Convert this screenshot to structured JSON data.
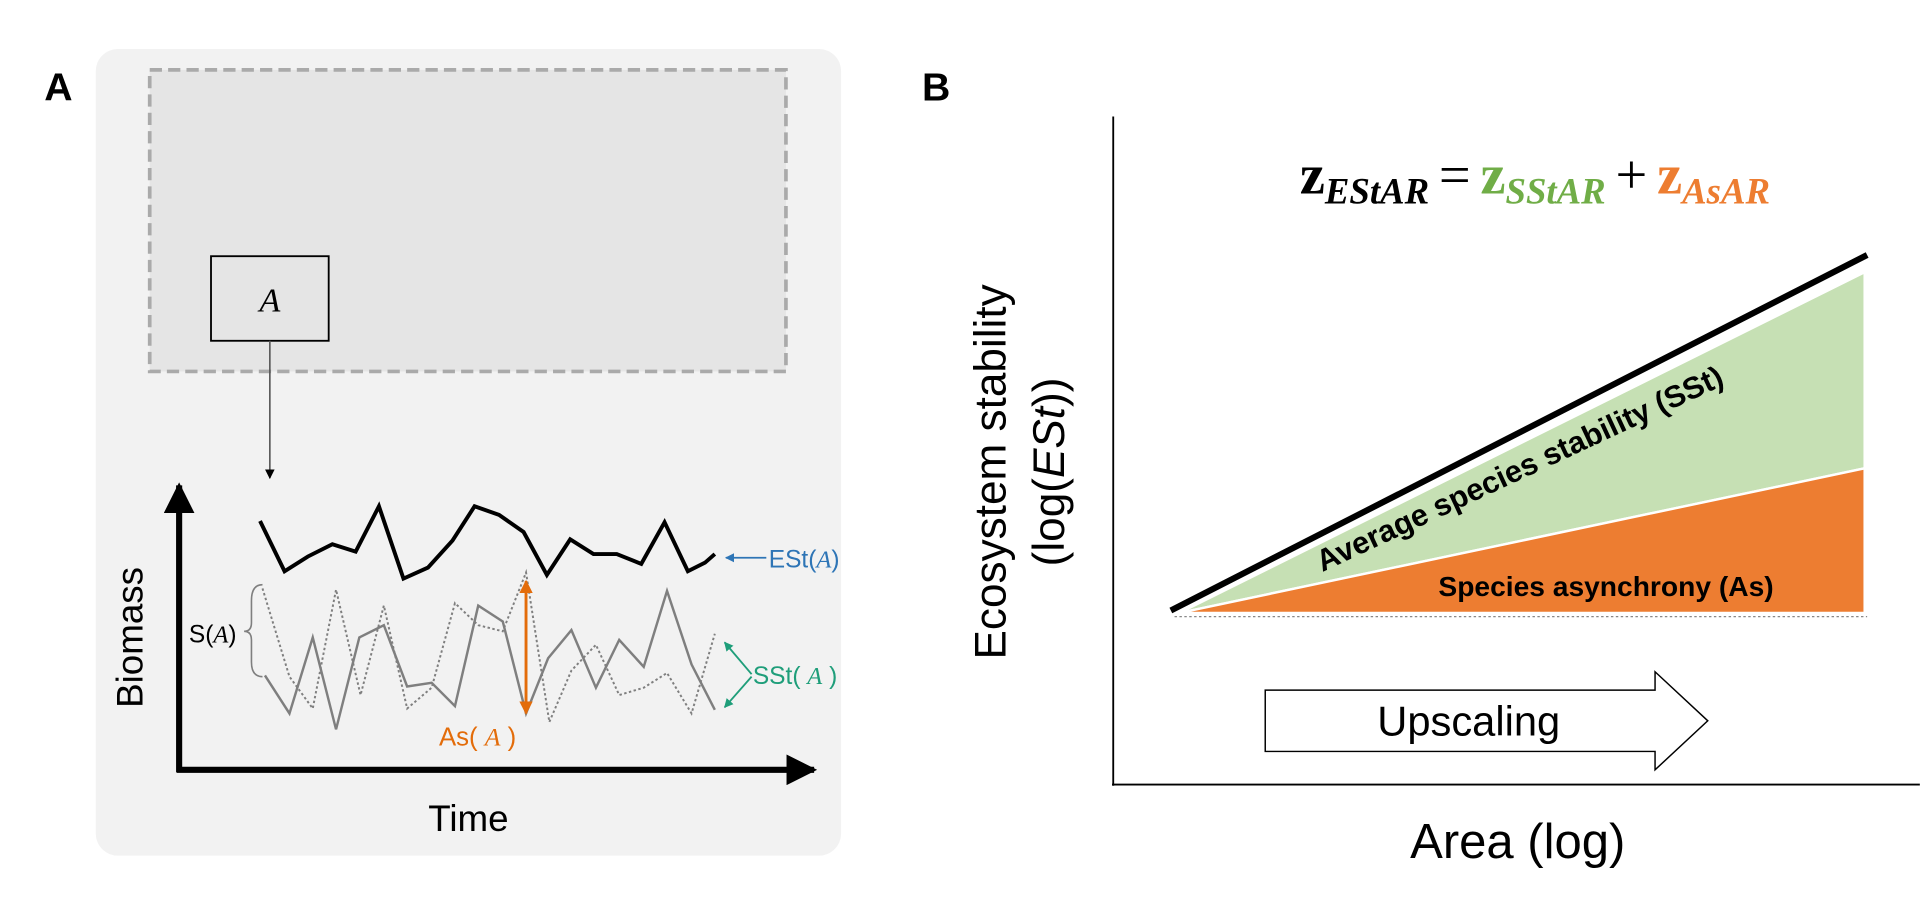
{
  "panel_a": {
    "label": "A",
    "subarea_label": "A",
    "y_axis_label": "Biomass",
    "x_axis_label": "Time",
    "ecosystem_label": {
      "prefix": "ESt(",
      "var": "A",
      "suffix": ")"
    },
    "species_label": {
      "prefix": "S(",
      "var": "A",
      "suffix": ")"
    },
    "asynchrony_label": {
      "prefix": "As( ",
      "var": "A",
      "suffix": " )"
    },
    "species_stability_label": {
      "prefix": "SSt( ",
      "var": "A",
      "suffix": " )"
    },
    "colors": {
      "panel_bg": "#f2f2f2",
      "region_bg": "#e5e5e5",
      "ecosystem": "#2e75b6",
      "asynchrony": "#e36c0a",
      "species_stability": "#1f9e7a",
      "species_line": "#7f7f7f"
    }
  },
  "panel_b": {
    "label": "B",
    "equation": {
      "lhs": {
        "symbol": "z",
        "sub": "EStAR"
      },
      "equals": "=",
      "term1": {
        "symbol": "z",
        "sub": "SStAR"
      },
      "plus": "+",
      "term2": {
        "symbol": "z",
        "sub": "AsAR"
      }
    },
    "y_axis_label_line1": "Ecosystem stability",
    "y_axis_label_line2": {
      "prefix": "(log(",
      "var": "ESt",
      "suffix": "))"
    },
    "x_axis_label": "Area (log)",
    "green_band_label": "Average species stability (SSt)",
    "orange_band_label": "Species asynchrony (As)",
    "arrow_label": "Upscaling",
    "colors": {
      "green": "#70ad47",
      "green_fill": "#c6e0b4",
      "orange": "#ed7d31"
    }
  }
}
